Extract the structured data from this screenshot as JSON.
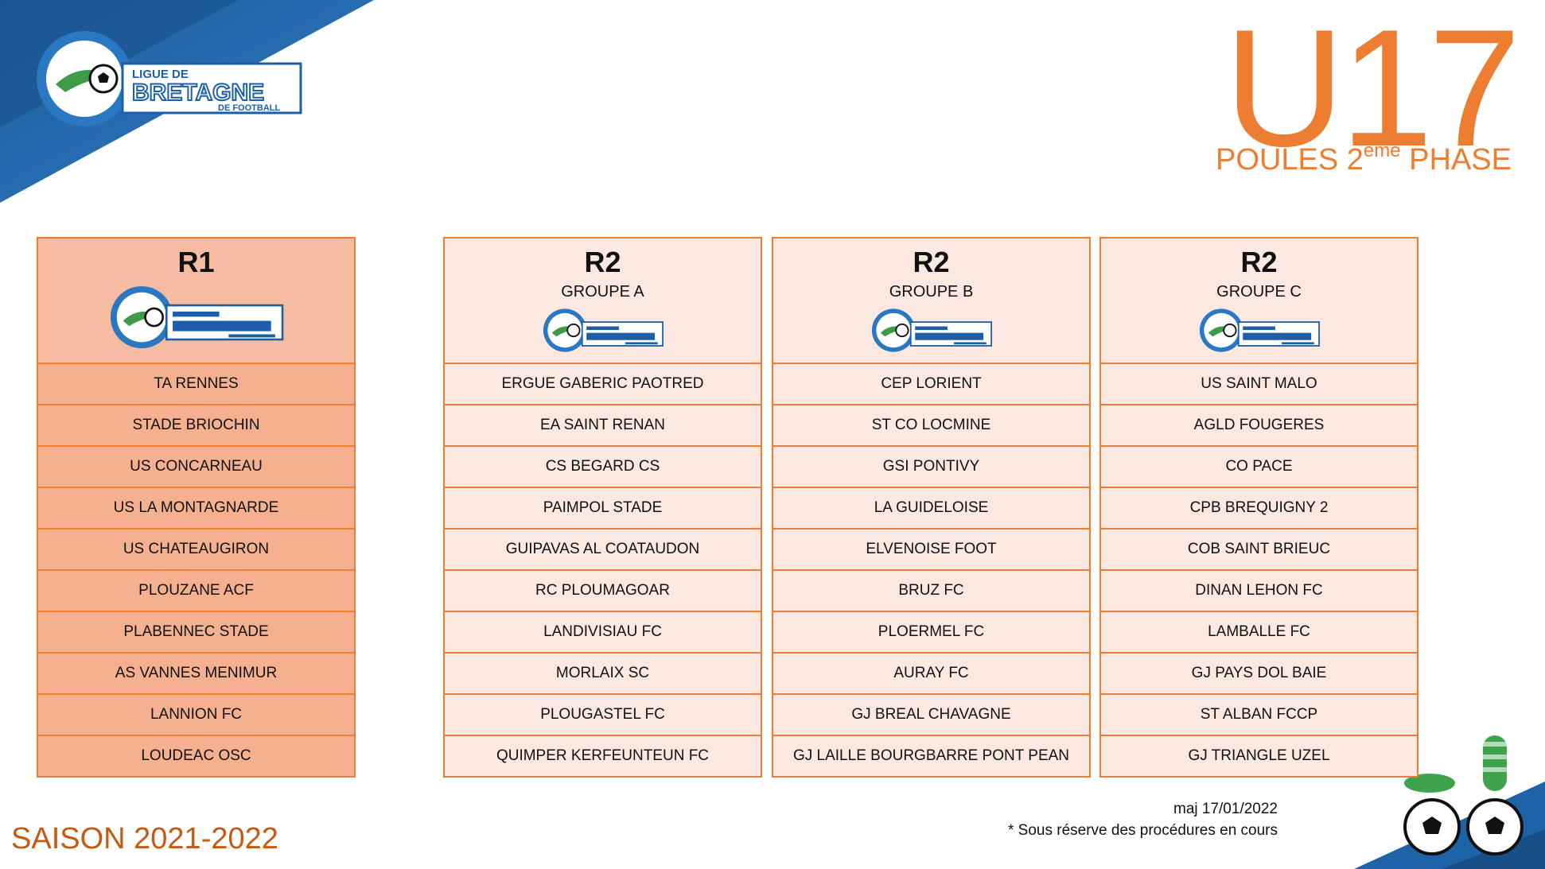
{
  "header": {
    "brand": {
      "line1": "LIGUE DE",
      "line2": "BRETAGNE",
      "line3": "DE FOOTBALL"
    },
    "category": "U17",
    "phase_prefix": "POULES 2",
    "phase_sup": "ème",
    "phase_suffix": " PHASE"
  },
  "groups": [
    {
      "title": "R1",
      "subtitle": "",
      "teams": [
        "TA RENNES",
        "STADE BRIOCHIN",
        "US CONCARNEAU",
        "US LA MONTAGNARDE",
        "US CHATEAUGIRON",
        "PLOUZANE ACF",
        "PLABENNEC STADE",
        "AS VANNES MENIMUR",
        "LANNION FC",
        "LOUDEAC OSC"
      ]
    },
    {
      "title": "R2",
      "subtitle": "GROUPE A",
      "teams": [
        "ERGUE GABERIC PAOTRED",
        "EA SAINT RENAN",
        "CS BEGARD CS",
        "PAIMPOL STADE",
        "GUIPAVAS AL COATAUDON",
        "RC PLOUMAGOAR",
        "LANDIVISIAU FC",
        "MORLAIX SC",
        "PLOUGASTEL FC",
        "QUIMPER KERFEUNTEUN FC"
      ]
    },
    {
      "title": "R2",
      "subtitle": "GROUPE B",
      "teams": [
        "CEP LORIENT",
        "ST CO LOCMINE",
        "GSI PONTIVY",
        "LA GUIDELOISE",
        "ELVENOISE FOOT",
        "BRUZ FC",
        "PLOERMEL FC",
        "AURAY FC",
        "GJ BREAL CHAVAGNE",
        "GJ LAILLE BOURGBARRE PONT PEAN"
      ]
    },
    {
      "title": "R2",
      "subtitle": "GROUPE C",
      "teams": [
        "US SAINT MALO",
        "AGLD FOUGERES",
        "CO PACE",
        "CPB BREQUIGNY 2",
        "COB SAINT BRIEUC",
        "DINAN LEHON FC",
        "LAMBALLE FC",
        "GJ PAYS DOL BAIE",
        "ST ALBAN FCCP",
        "GJ TRIANGLE UZEL"
      ]
    }
  ],
  "footer": {
    "season": "SAISON 2021-2022",
    "updated": "maj 17/01/2022",
    "note": "* Sous réserve des procédures en cours"
  },
  "colors": {
    "accent": "#ED7D31",
    "r1_fill": "#F5B08F",
    "r2_fill": "#FBE8E0",
    "blue": "#1C5FA8"
  }
}
